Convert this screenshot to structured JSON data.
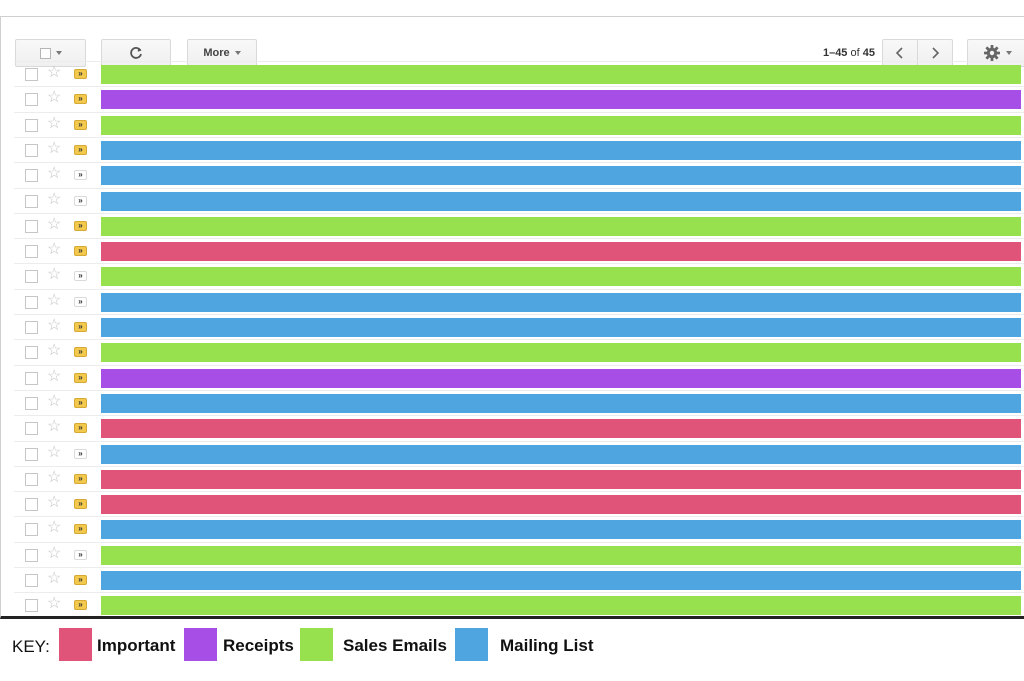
{
  "colors": {
    "important": "#e0547a",
    "receipts": "#a64ee6",
    "sales": "#97e04e",
    "mailing": "#4fa5e0"
  },
  "toolbar": {
    "select_icon": "checkbox-dropdown-icon",
    "refresh_icon": "refresh-icon",
    "more_label": "More",
    "range_label": "1–45",
    "of_label": "of",
    "total_label": "45",
    "prev_icon": "chevron-left-icon",
    "next_icon": "chevron-right-icon",
    "settings_icon": "gear-icon"
  },
  "rows": [
    {
      "category": "sales",
      "important": true
    },
    {
      "category": "receipts",
      "important": true
    },
    {
      "category": "sales",
      "important": true
    },
    {
      "category": "mailing",
      "important": true
    },
    {
      "category": "mailing",
      "important": false
    },
    {
      "category": "mailing",
      "important": false
    },
    {
      "category": "sales",
      "important": true
    },
    {
      "category": "important",
      "important": true
    },
    {
      "category": "sales",
      "important": false
    },
    {
      "category": "mailing",
      "important": false
    },
    {
      "category": "mailing",
      "important": true
    },
    {
      "category": "sales",
      "important": true
    },
    {
      "category": "receipts",
      "important": true
    },
    {
      "category": "mailing",
      "important": true
    },
    {
      "category": "important",
      "important": true
    },
    {
      "category": "mailing",
      "important": false
    },
    {
      "category": "important",
      "important": true
    },
    {
      "category": "important",
      "important": true
    },
    {
      "category": "mailing",
      "important": true
    },
    {
      "category": "sales",
      "important": false
    },
    {
      "category": "mailing",
      "important": true
    },
    {
      "category": "sales",
      "important": true
    }
  ],
  "key": {
    "label": "KEY:",
    "items": [
      {
        "category": "important",
        "label": "Important"
      },
      {
        "category": "receipts",
        "label": "Receipts"
      },
      {
        "category": "sales",
        "label": "Sales Emails"
      },
      {
        "category": "mailing",
        "label": "Mailing List"
      }
    ]
  }
}
